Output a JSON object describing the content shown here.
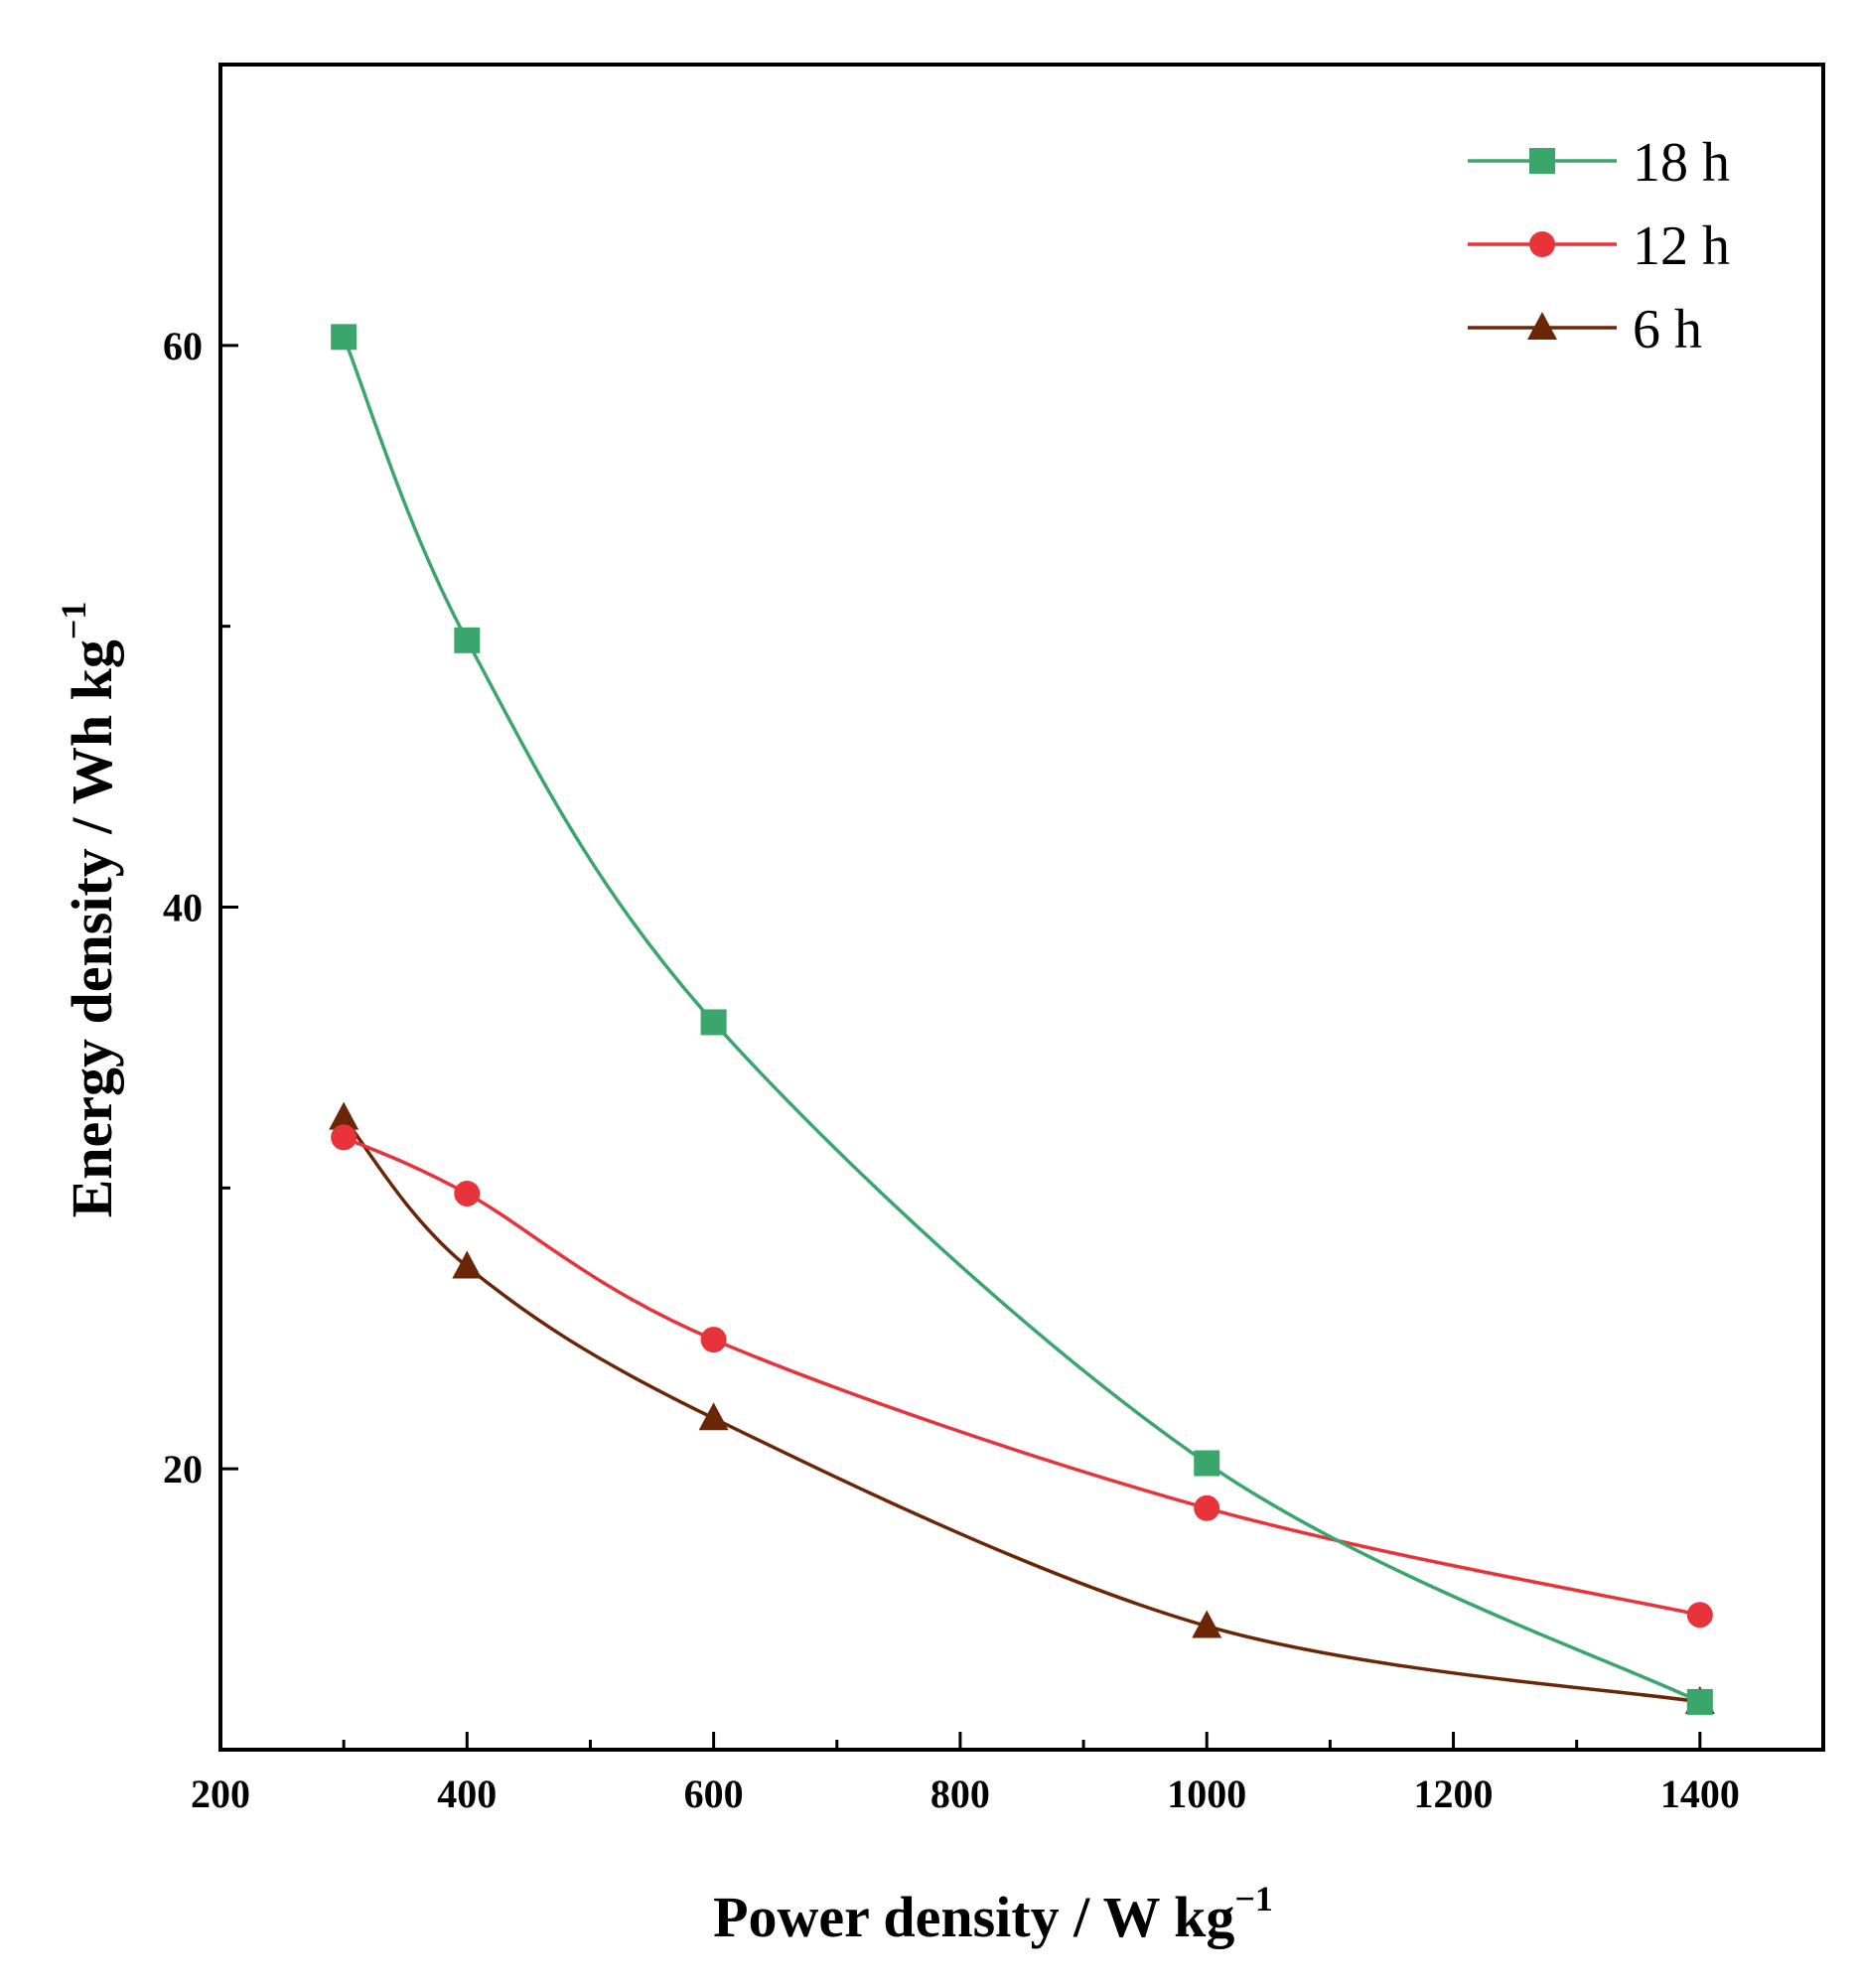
{
  "chart_data": {
    "type": "line",
    "title": "",
    "xlabel": "Power density / W kg",
    "xlabel_sup": "−1",
    "ylabel": "Energy density / Wh kg",
    "ylabel_sup": "−1",
    "xlim": [
      200,
      1500
    ],
    "ylim": [
      10,
      70
    ],
    "x_ticks": [
      200,
      400,
      600,
      800,
      1000,
      1200,
      1400
    ],
    "x_minor_ticks": [
      300,
      500,
      700,
      900,
      1100,
      1300
    ],
    "y_ticks": [
      20,
      40,
      60
    ],
    "y_minor_ticks": [
      30,
      50
    ],
    "x_tick_labels": [
      "200",
      "400",
      "600",
      "800",
      "1000",
      "1200",
      "1400"
    ],
    "y_tick_labels": [
      "20",
      "40",
      "60"
    ],
    "legend_position": "top-right",
    "series": [
      {
        "name": "18 h",
        "color": "#3aa66b",
        "marker": "square",
        "x": [
          300,
          400,
          600,
          1000,
          1400
        ],
        "y": [
          60.3,
          49.5,
          35.9,
          20.2,
          11.7
        ]
      },
      {
        "name": "12 h",
        "color": "#e8333b",
        "marker": "circle",
        "x": [
          300,
          400,
          600,
          1000,
          1400
        ],
        "y": [
          31.8,
          29.8,
          24.6,
          18.6,
          14.8
        ]
      },
      {
        "name": "6 h",
        "color": "#6b2608",
        "marker": "triangle",
        "x": [
          300,
          400,
          600,
          1000,
          1400
        ],
        "y": [
          32.5,
          27.2,
          21.8,
          14.4,
          11.7
        ]
      }
    ]
  }
}
